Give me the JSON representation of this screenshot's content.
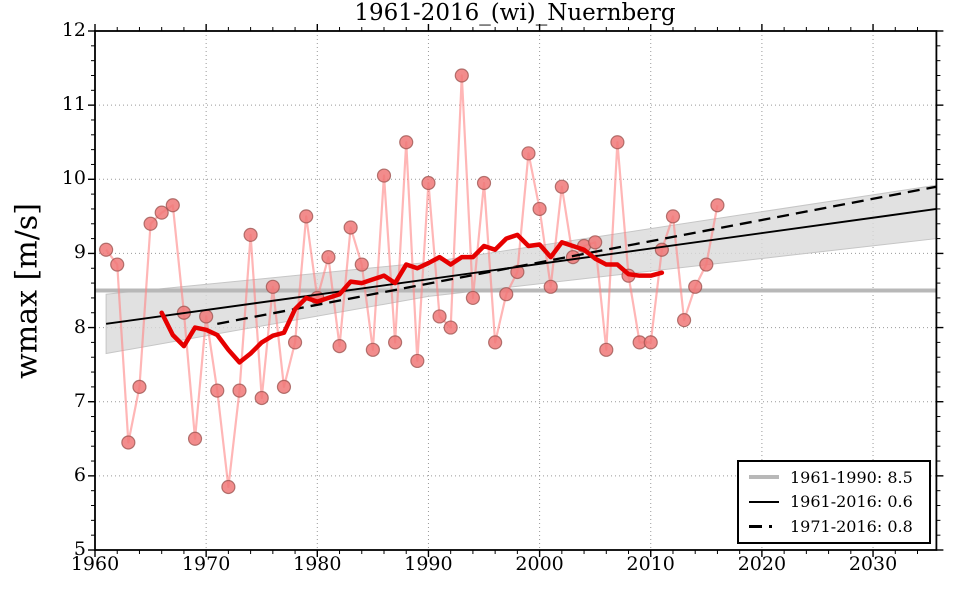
{
  "figure": {
    "title": "1961-2016_(wi)_Nuernberg",
    "ylabel": "wmax [m/s]"
  },
  "legend": {
    "position": "lower right",
    "items": [
      {
        "label": "1961-1990: 8.5",
        "line_style": "gray-thick"
      },
      {
        "label": "1961-2016: 0.6",
        "line_style": "black-solid"
      },
      {
        "label": "1971-2016: 0.8",
        "line_style": "black-dashed"
      }
    ]
  },
  "chart_data": {
    "type": "line",
    "title": "1961-2016_(wi)_Nuernberg",
    "xlabel": "",
    "ylabel": "wmax [m/s]",
    "xlim": [
      1960,
      2035.7
    ],
    "ylim": [
      5,
      12
    ],
    "xticks": [
      1960,
      1970,
      1980,
      1990,
      2000,
      2010,
      2020,
      2030
    ],
    "yticks": [
      5,
      6,
      7,
      8,
      9,
      10,
      11,
      12
    ],
    "grid": true,
    "grid_style": "dotted",
    "legend_position": "lower right",
    "series": [
      {
        "name": "annual-wmax",
        "type": "line+marker",
        "x": [
          1961,
          1962,
          1963,
          1964,
          1965,
          1966,
          1967,
          1968,
          1969,
          1970,
          1971,
          1972,
          1973,
          1974,
          1975,
          1976,
          1977,
          1978,
          1979,
          1980,
          1981,
          1982,
          1983,
          1984,
          1985,
          1986,
          1987,
          1988,
          1989,
          1990,
          1991,
          1992,
          1993,
          1994,
          1995,
          1996,
          1997,
          1998,
          1999,
          2000,
          2001,
          2002,
          2003,
          2004,
          2005,
          2006,
          2007,
          2008,
          2009,
          2010,
          2011,
          2012,
          2013,
          2014,
          2015,
          2016
        ],
        "y": [
          9.05,
          8.85,
          6.45,
          7.2,
          9.4,
          9.55,
          9.65,
          8.2,
          6.5,
          8.15,
          7.15,
          5.85,
          7.15,
          9.25,
          7.05,
          8.55,
          7.2,
          7.8,
          9.5,
          8.4,
          8.95,
          7.75,
          9.35,
          8.85,
          7.7,
          10.05,
          7.8,
          10.5,
          7.55,
          9.95,
          8.15,
          8.0,
          11.4,
          8.4,
          9.95,
          7.8,
          8.45,
          8.75,
          10.35,
          9.6,
          8.55,
          9.9,
          8.95,
          9.1,
          9.15,
          7.7,
          10.5,
          8.7,
          7.8,
          7.8,
          9.05,
          9.5,
          8.1,
          8.55,
          8.85,
          9.65
        ]
      },
      {
        "name": "running-mean-11yr",
        "type": "line",
        "x": [
          1966,
          1967,
          1968,
          1969,
          1970,
          1971,
          1972,
          1973,
          1974,
          1975,
          1976,
          1977,
          1978,
          1979,
          1980,
          1981,
          1982,
          1983,
          1984,
          1985,
          1986,
          1987,
          1988,
          1989,
          1990,
          1991,
          1992,
          1993,
          1994,
          1995,
          1996,
          1997,
          1998,
          1999,
          2000,
          2001,
          2002,
          2003,
          2004,
          2005,
          2006,
          2007,
          2008,
          2009,
          2010,
          2011
        ],
        "y": [
          8.2,
          7.9,
          7.75,
          8.0,
          7.97,
          7.9,
          7.7,
          7.53,
          7.65,
          7.8,
          7.89,
          7.93,
          8.25,
          8.4,
          8.35,
          8.4,
          8.45,
          8.62,
          8.6,
          8.65,
          8.7,
          8.6,
          8.85,
          8.8,
          8.87,
          8.95,
          8.85,
          8.95,
          8.95,
          9.1,
          9.05,
          9.2,
          9.25,
          9.1,
          9.12,
          8.95,
          9.15,
          9.1,
          9.05,
          8.93,
          8.85,
          8.85,
          8.72,
          8.7,
          8.7,
          8.74
        ]
      },
      {
        "name": "reference-1961-1990",
        "type": "hline",
        "value": 8.5,
        "x": [
          1960,
          2035.7
        ]
      },
      {
        "name": "trend-1961-2016",
        "type": "line",
        "x": [
          1961,
          2035.7
        ],
        "y": [
          8.05,
          9.6
        ]
      },
      {
        "name": "trend-1971-2016",
        "type": "dashed-line",
        "x": [
          1971,
          2035.7
        ],
        "y": [
          8.05,
          9.9
        ]
      },
      {
        "name": "confidence-band",
        "type": "band",
        "top": [
          [
            1961,
            8.45
          ],
          [
            1990,
            8.88
          ],
          [
            2035.7,
            9.92
          ]
        ],
        "bottom": [
          [
            1961,
            7.65
          ],
          [
            1990,
            8.42
          ],
          [
            2035.7,
            9.2
          ]
        ]
      }
    ],
    "colors": {
      "annual_marker_fill": "#f07878",
      "annual_marker_edge": "#99524e",
      "annual_line": "#ff8585",
      "running_mean": "#e60000",
      "reference_line": "#b8b8b8",
      "trend_solid": "#000000",
      "trend_dashed": "#000000",
      "band_fill": "#d9d9d9",
      "grid": "#999999",
      "spine": "#000000"
    }
  }
}
